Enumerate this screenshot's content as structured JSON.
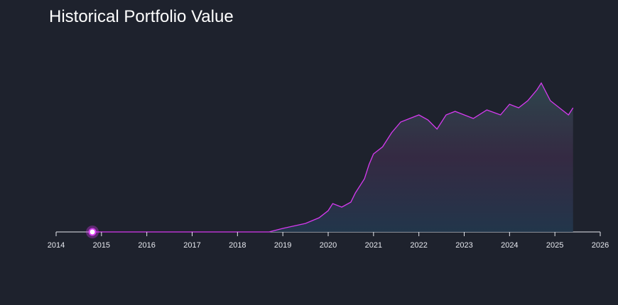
{
  "chart_data": {
    "type": "line",
    "title": "Historical Portfolio Value",
    "x": [
      2014.8,
      2018.7,
      2019.0,
      2019.5,
      2019.8,
      2020.0,
      2020.1,
      2020.3,
      2020.5,
      2020.6,
      2020.8,
      2020.9,
      2021.0,
      2021.2,
      2021.4,
      2021.6,
      2021.8,
      2022.0,
      2022.2,
      2022.4,
      2022.6,
      2022.8,
      2023.0,
      2023.2,
      2023.5,
      2023.8,
      2024.0,
      2024.2,
      2024.4,
      2024.6,
      2024.7,
      2024.9,
      2025.1,
      2025.3,
      2025.4
    ],
    "values": [
      0,
      0,
      5,
      12,
      20,
      30,
      40,
      35,
      42,
      55,
      75,
      95,
      110,
      120,
      140,
      155,
      160,
      165,
      158,
      145,
      165,
      170,
      165,
      160,
      172,
      165,
      180,
      175,
      185,
      200,
      210,
      185,
      175,
      165,
      175
    ],
    "color": "#d63af0",
    "area_color": "#2a4a55",
    "xlim": [
      2014,
      2026
    ],
    "xticks": [
      2014,
      2015,
      2016,
      2017,
      2018,
      2019,
      2020,
      2021,
      2022,
      2023,
      2024,
      2025,
      2026
    ],
    "ylim": [
      0,
      270
    ]
  }
}
